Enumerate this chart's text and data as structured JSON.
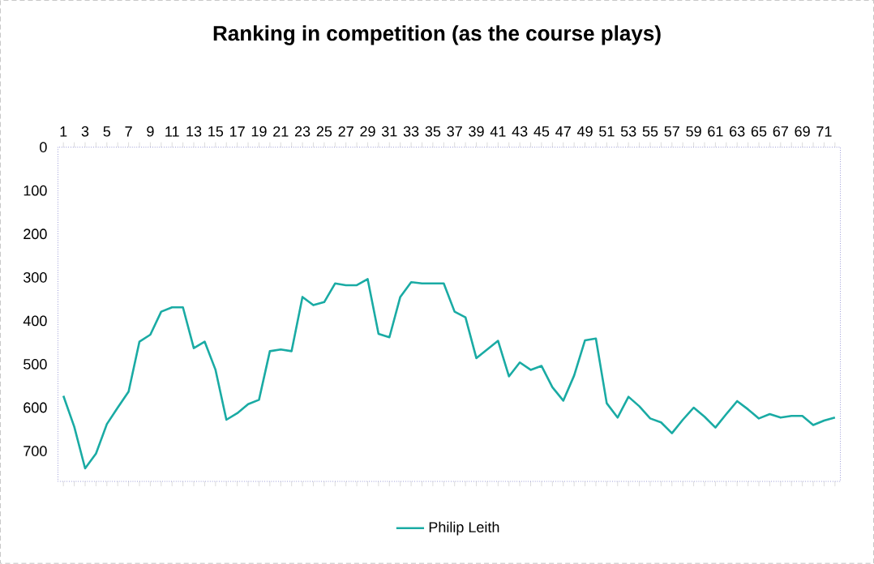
{
  "chart_data": {
    "type": "line",
    "title": "Ranking in competition (as the course plays)",
    "categories": [
      "1",
      null,
      "3",
      null,
      "5",
      null,
      "7",
      null,
      "9",
      null,
      "11",
      null,
      "13",
      null,
      "15",
      null,
      "17",
      null,
      "19",
      null,
      "21",
      null,
      "23",
      null,
      "25",
      null,
      "27",
      null,
      "29",
      null,
      "31",
      null,
      "33",
      null,
      "35",
      null,
      "37",
      null,
      "39",
      null,
      "41",
      null,
      "43",
      null,
      "45",
      null,
      "47",
      null,
      "49",
      null,
      "51",
      null,
      "53",
      null,
      "55",
      null,
      "57",
      null,
      "59",
      null,
      "61",
      null,
      "63",
      null,
      "65",
      null,
      "67",
      null,
      "69",
      null,
      "71",
      null
    ],
    "series": [
      {
        "name": "Philip Leith",
        "color": "#1aaba4",
        "values": [
          573,
          644,
          740,
          706,
          638,
          600,
          563,
          448,
          432,
          379,
          369,
          369,
          463,
          448,
          513,
          628,
          613,
          592,
          582,
          470,
          466,
          470,
          345,
          364,
          357,
          314,
          318,
          318,
          304,
          430,
          438,
          345,
          311,
          314,
          314,
          314,
          379,
          392,
          486,
          466,
          446,
          528,
          496,
          513,
          504,
          553,
          584,
          526,
          445,
          441,
          590,
          623,
          575,
          597,
          625,
          634,
          659,
          628,
          600,
          621,
          646,
          615,
          585,
          604,
          625,
          615,
          623,
          619,
          619,
          640,
          630,
          623
        ]
      }
    ],
    "ylim": [
      770,
      0
    ],
    "yticks": [
      0,
      100,
      200,
      300,
      400,
      500,
      600,
      700
    ],
    "grid": false,
    "legend": "bottom",
    "marker": "none",
    "line_style": "solid"
  }
}
